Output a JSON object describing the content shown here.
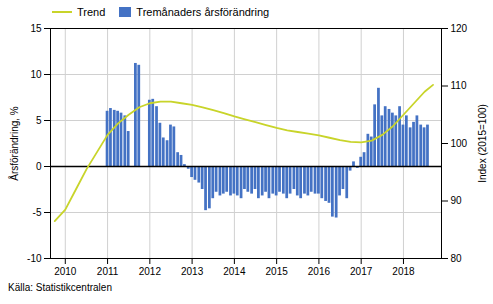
{
  "chart_data": {
    "type": "bar",
    "ylabel": "Årsförändring, %",
    "y2label": "Index (2015=100)",
    "annotations": [
      "Källa: Statistikcentralen"
    ],
    "legend": "upper left",
    "grid": true,
    "xlim": [
      2009.65,
      2018.9
    ],
    "xticks": [
      2010,
      2011,
      2012,
      2013,
      2014,
      2015,
      2016,
      2017,
      2018
    ],
    "ylim": [
      -10,
      15
    ],
    "yticks": [
      -10,
      -5,
      0,
      5,
      10,
      15
    ],
    "y2lim": [
      80,
      120
    ],
    "y2ticks": [
      80,
      90,
      100,
      110,
      120
    ],
    "series": [
      {
        "name": "Trend",
        "type": "line",
        "axis": "y2",
        "color": "#c8d42a",
        "x": [
          2009.75,
          2010.0,
          2010.25,
          2010.5,
          2010.75,
          2011.0,
          2011.25,
          2011.5,
          2011.75,
          2012.0,
          2012.25,
          2012.5,
          2012.75,
          2013.0,
          2013.25,
          2013.5,
          2013.75,
          2014.0,
          2014.25,
          2014.5,
          2014.75,
          2015.0,
          2015.25,
          2015.5,
          2015.75,
          2016.0,
          2016.25,
          2016.5,
          2016.75,
          2017.0,
          2017.25,
          2017.5,
          2017.75,
          2018.0,
          2018.25,
          2018.5,
          2018.7
        ],
        "values": [
          86.5,
          88.5,
          92.0,
          95.5,
          98.5,
          101.5,
          103.5,
          105.0,
          106.3,
          107.0,
          107.3,
          107.3,
          107.0,
          106.7,
          106.3,
          105.8,
          105.3,
          104.7,
          104.2,
          103.7,
          103.2,
          102.7,
          102.3,
          102.0,
          101.7,
          101.4,
          101.0,
          100.6,
          100.3,
          100.2,
          100.5,
          101.5,
          103.0,
          105.0,
          107.0,
          109.0,
          110.2
        ]
      },
      {
        "name": "Tremånaders årsförändring",
        "type": "bar",
        "color": "#4472c4",
        "x": [
          2011.0,
          2011.08,
          2011.17,
          2011.25,
          2011.33,
          2011.42,
          2011.5,
          2011.67,
          2011.75,
          2012.0,
          2012.08,
          2012.17,
          2012.25,
          2012.33,
          2012.42,
          2012.5,
          2012.58,
          2012.67,
          2012.75,
          2012.83,
          2012.92,
          2013.0,
          2013.08,
          2013.17,
          2013.25,
          2013.33,
          2013.42,
          2013.5,
          2013.58,
          2013.67,
          2013.75,
          2013.83,
          2013.92,
          2014.0,
          2014.08,
          2014.17,
          2014.25,
          2014.33,
          2014.42,
          2014.5,
          2014.58,
          2014.67,
          2014.75,
          2014.83,
          2014.92,
          2015.0,
          2015.08,
          2015.17,
          2015.25,
          2015.33,
          2015.42,
          2015.5,
          2015.58,
          2015.67,
          2015.75,
          2015.83,
          2015.92,
          2016.0,
          2016.08,
          2016.17,
          2016.25,
          2016.33,
          2016.42,
          2016.5,
          2016.58,
          2016.67,
          2016.75,
          2016.83,
          2016.92,
          2017.0,
          2017.08,
          2017.17,
          2017.25,
          2017.33,
          2017.42,
          2017.5,
          2017.58,
          2017.67,
          2017.75,
          2017.83,
          2017.92,
          2018.0,
          2018.08,
          2018.17,
          2018.25,
          2018.33,
          2018.42,
          2018.5,
          2018.58
        ],
        "values": [
          6.0,
          6.3,
          6.1,
          6.0,
          5.8,
          5.5,
          3.8,
          11.2,
          11.0,
          7.2,
          7.3,
          6.5,
          4.7,
          3.1,
          2.8,
          4.5,
          4.3,
          1.5,
          1.2,
          0.2,
          -0.3,
          -1.2,
          -1.5,
          -1.8,
          -2.5,
          -4.8,
          -4.6,
          -3.5,
          -2.8,
          -3.2,
          -3.0,
          -2.8,
          -3.2,
          -3.0,
          -3.2,
          -3.5,
          -2.5,
          -2.8,
          -3.0,
          -2.5,
          -3.5,
          -3.2,
          -2.8,
          -3.5,
          -3.0,
          -3.2,
          -2.8,
          -3.0,
          -3.5,
          -3.0,
          -2.5,
          -3.2,
          -3.5,
          -3.0,
          -3.2,
          -2.8,
          -3.0,
          -3.0,
          -3.5,
          -3.8,
          -4.0,
          -5.5,
          -5.6,
          -3.2,
          -2.5,
          -3.5,
          -0.5,
          0.5,
          -0.2,
          1.0,
          1.5,
          3.5,
          3.2,
          6.7,
          8.5,
          5.5,
          6.5,
          6.2,
          5.8,
          5.5,
          6.5,
          4.5,
          5.5,
          4.2,
          4.8,
          5.5,
          4.5,
          4.2,
          4.5
        ]
      }
    ]
  }
}
